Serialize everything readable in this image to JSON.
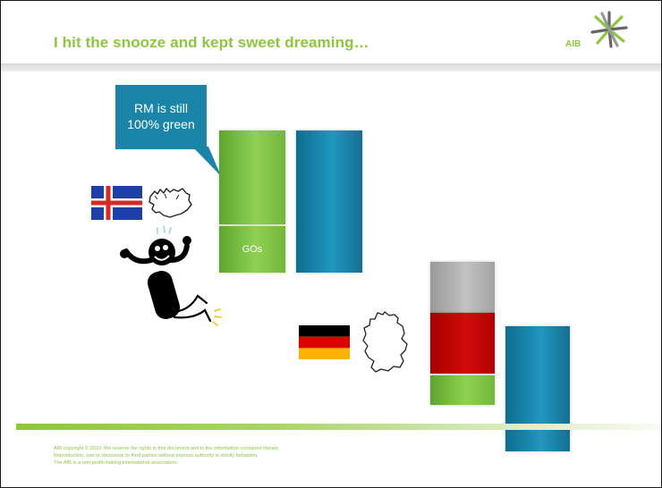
{
  "slide": {
    "title": "I hit  the snooze and kept sweet dreaming…",
    "logo_text": "AIB",
    "callout_line1": "RM is still",
    "callout_line2": "100% green",
    "go_label": "GOs",
    "footer": {
      "line1": "AIB copyright © 2019. We reserve the rights in this document and in the information contained therein.",
      "line2": "Reproduction, use or disclosure to third parties without express authority is strictly forbidden.",
      "line3": "The AIB is a non-profit-making international association."
    }
  },
  "colors": {
    "accent_green": "#8dc63f",
    "teal": "#1a84a9",
    "red": "#c80000",
    "grey": "#b5b5b5"
  },
  "icons": [
    "aib-star-logo",
    "iceland-flag",
    "iceland-map",
    "dreaming-figure",
    "germany-flag",
    "germany-map"
  ]
}
